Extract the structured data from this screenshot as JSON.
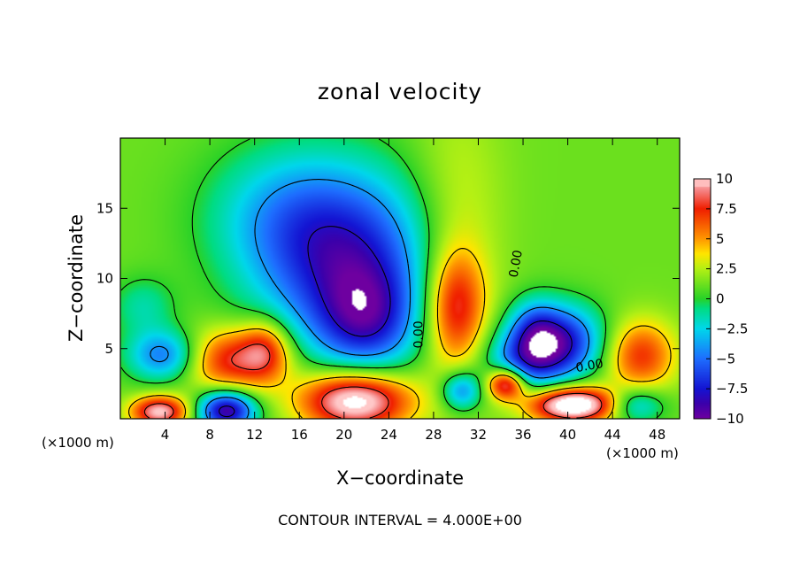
{
  "chart_data": {
    "type": "heatmap",
    "title": "zonal velocity",
    "xlabel": "X−coordinate",
    "ylabel": "Z−coordinate",
    "x_unit_left": "(×1000 m)",
    "x_unit_right": "(×1000 m)",
    "note": "CONTOUR INTERVAL = 4.000E+00",
    "xlim": [
      0,
      50
    ],
    "ylim": [
      0,
      20
    ],
    "xticks": [
      4,
      8,
      12,
      16,
      20,
      24,
      28,
      32,
      36,
      40,
      44,
      48
    ],
    "yticks": [
      5,
      10,
      15
    ],
    "colorbar": {
      "ticks": [
        10,
        7.5,
        5,
        2.5,
        0,
        -2.5,
        -5,
        -7.5,
        -10
      ],
      "tick_labels": [
        "10",
        "7.5",
        "5",
        "2.5",
        "0",
        "−2.5",
        "−5",
        "−7.5",
        "−10"
      ],
      "vmin": -10,
      "vmax": 10
    },
    "contour_labels": [
      {
        "text": "0.00",
        "x": 27.0,
        "y": 6.0,
        "angle": -90
      },
      {
        "text": "0.00",
        "x": 35.7,
        "y": 11.0,
        "angle": -80
      },
      {
        "text": "0.00",
        "x": 42.0,
        "y": 3.5,
        "angle": -10
      }
    ],
    "features": [
      {
        "x": 20.5,
        "y": 11.0,
        "v": -8.5,
        "sx": 5.5,
        "sy": 4.5
      },
      {
        "x": 22.0,
        "y": 7.0,
        "v": -5.5,
        "sx": 3.0,
        "sy": 2.5
      },
      {
        "x": 14.5,
        "y": 14.5,
        "v": -3.5,
        "sx": 5.0,
        "sy": 3.5
      },
      {
        "x": 30.0,
        "y": 12.0,
        "v": 2.5,
        "sx": 3.0,
        "sy": 7.0
      },
      {
        "x": 30.0,
        "y": 8.0,
        "v": 6.0,
        "sx": 1.8,
        "sy": 2.8
      },
      {
        "x": 21.0,
        "y": 1.3,
        "v": 11.0,
        "sx": 3.5,
        "sy": 1.5
      },
      {
        "x": 10.0,
        "y": 4.2,
        "v": 7.0,
        "sx": 3.2,
        "sy": 1.6
      },
      {
        "x": 13.0,
        "y": 5.0,
        "v": 4.5,
        "sx": 1.5,
        "sy": 1.5
      },
      {
        "x": 4.0,
        "y": 4.5,
        "v": -6.5,
        "sx": 2.3,
        "sy": 1.3
      },
      {
        "x": 9.5,
        "y": 0.6,
        "v": -10.5,
        "sx": 1.8,
        "sy": 1.0
      },
      {
        "x": 3.5,
        "y": 0.5,
        "v": 9.0,
        "sx": 1.8,
        "sy": 0.8
      },
      {
        "x": 39.0,
        "y": 5.5,
        "v": -9.5,
        "sx": 2.8,
        "sy": 1.8
      },
      {
        "x": 36.0,
        "y": 4.0,
        "v": -5.0,
        "sx": 2.5,
        "sy": 1.5
      },
      {
        "x": 40.5,
        "y": 1.0,
        "v": 12.0,
        "sx": 2.8,
        "sy": 0.9
      },
      {
        "x": 34.5,
        "y": 2.5,
        "v": 9.0,
        "sx": 1.2,
        "sy": 0.8
      },
      {
        "x": 46.5,
        "y": 4.5,
        "v": 6.0,
        "sx": 2.2,
        "sy": 1.8
      },
      {
        "x": 30.5,
        "y": 2.0,
        "v": -6.0,
        "sx": 1.3,
        "sy": 1.0
      },
      {
        "x": 46.0,
        "y": 1.0,
        "v": -5.0,
        "sx": 1.8,
        "sy": 0.9
      },
      {
        "x": 2.0,
        "y": 8.0,
        "v": -2.5,
        "sx": 2.0,
        "sy": 1.5
      },
      {
        "x": 37.0,
        "y": 6.5,
        "v": -3.0,
        "sx": 1.5,
        "sy": 1.5
      }
    ]
  }
}
